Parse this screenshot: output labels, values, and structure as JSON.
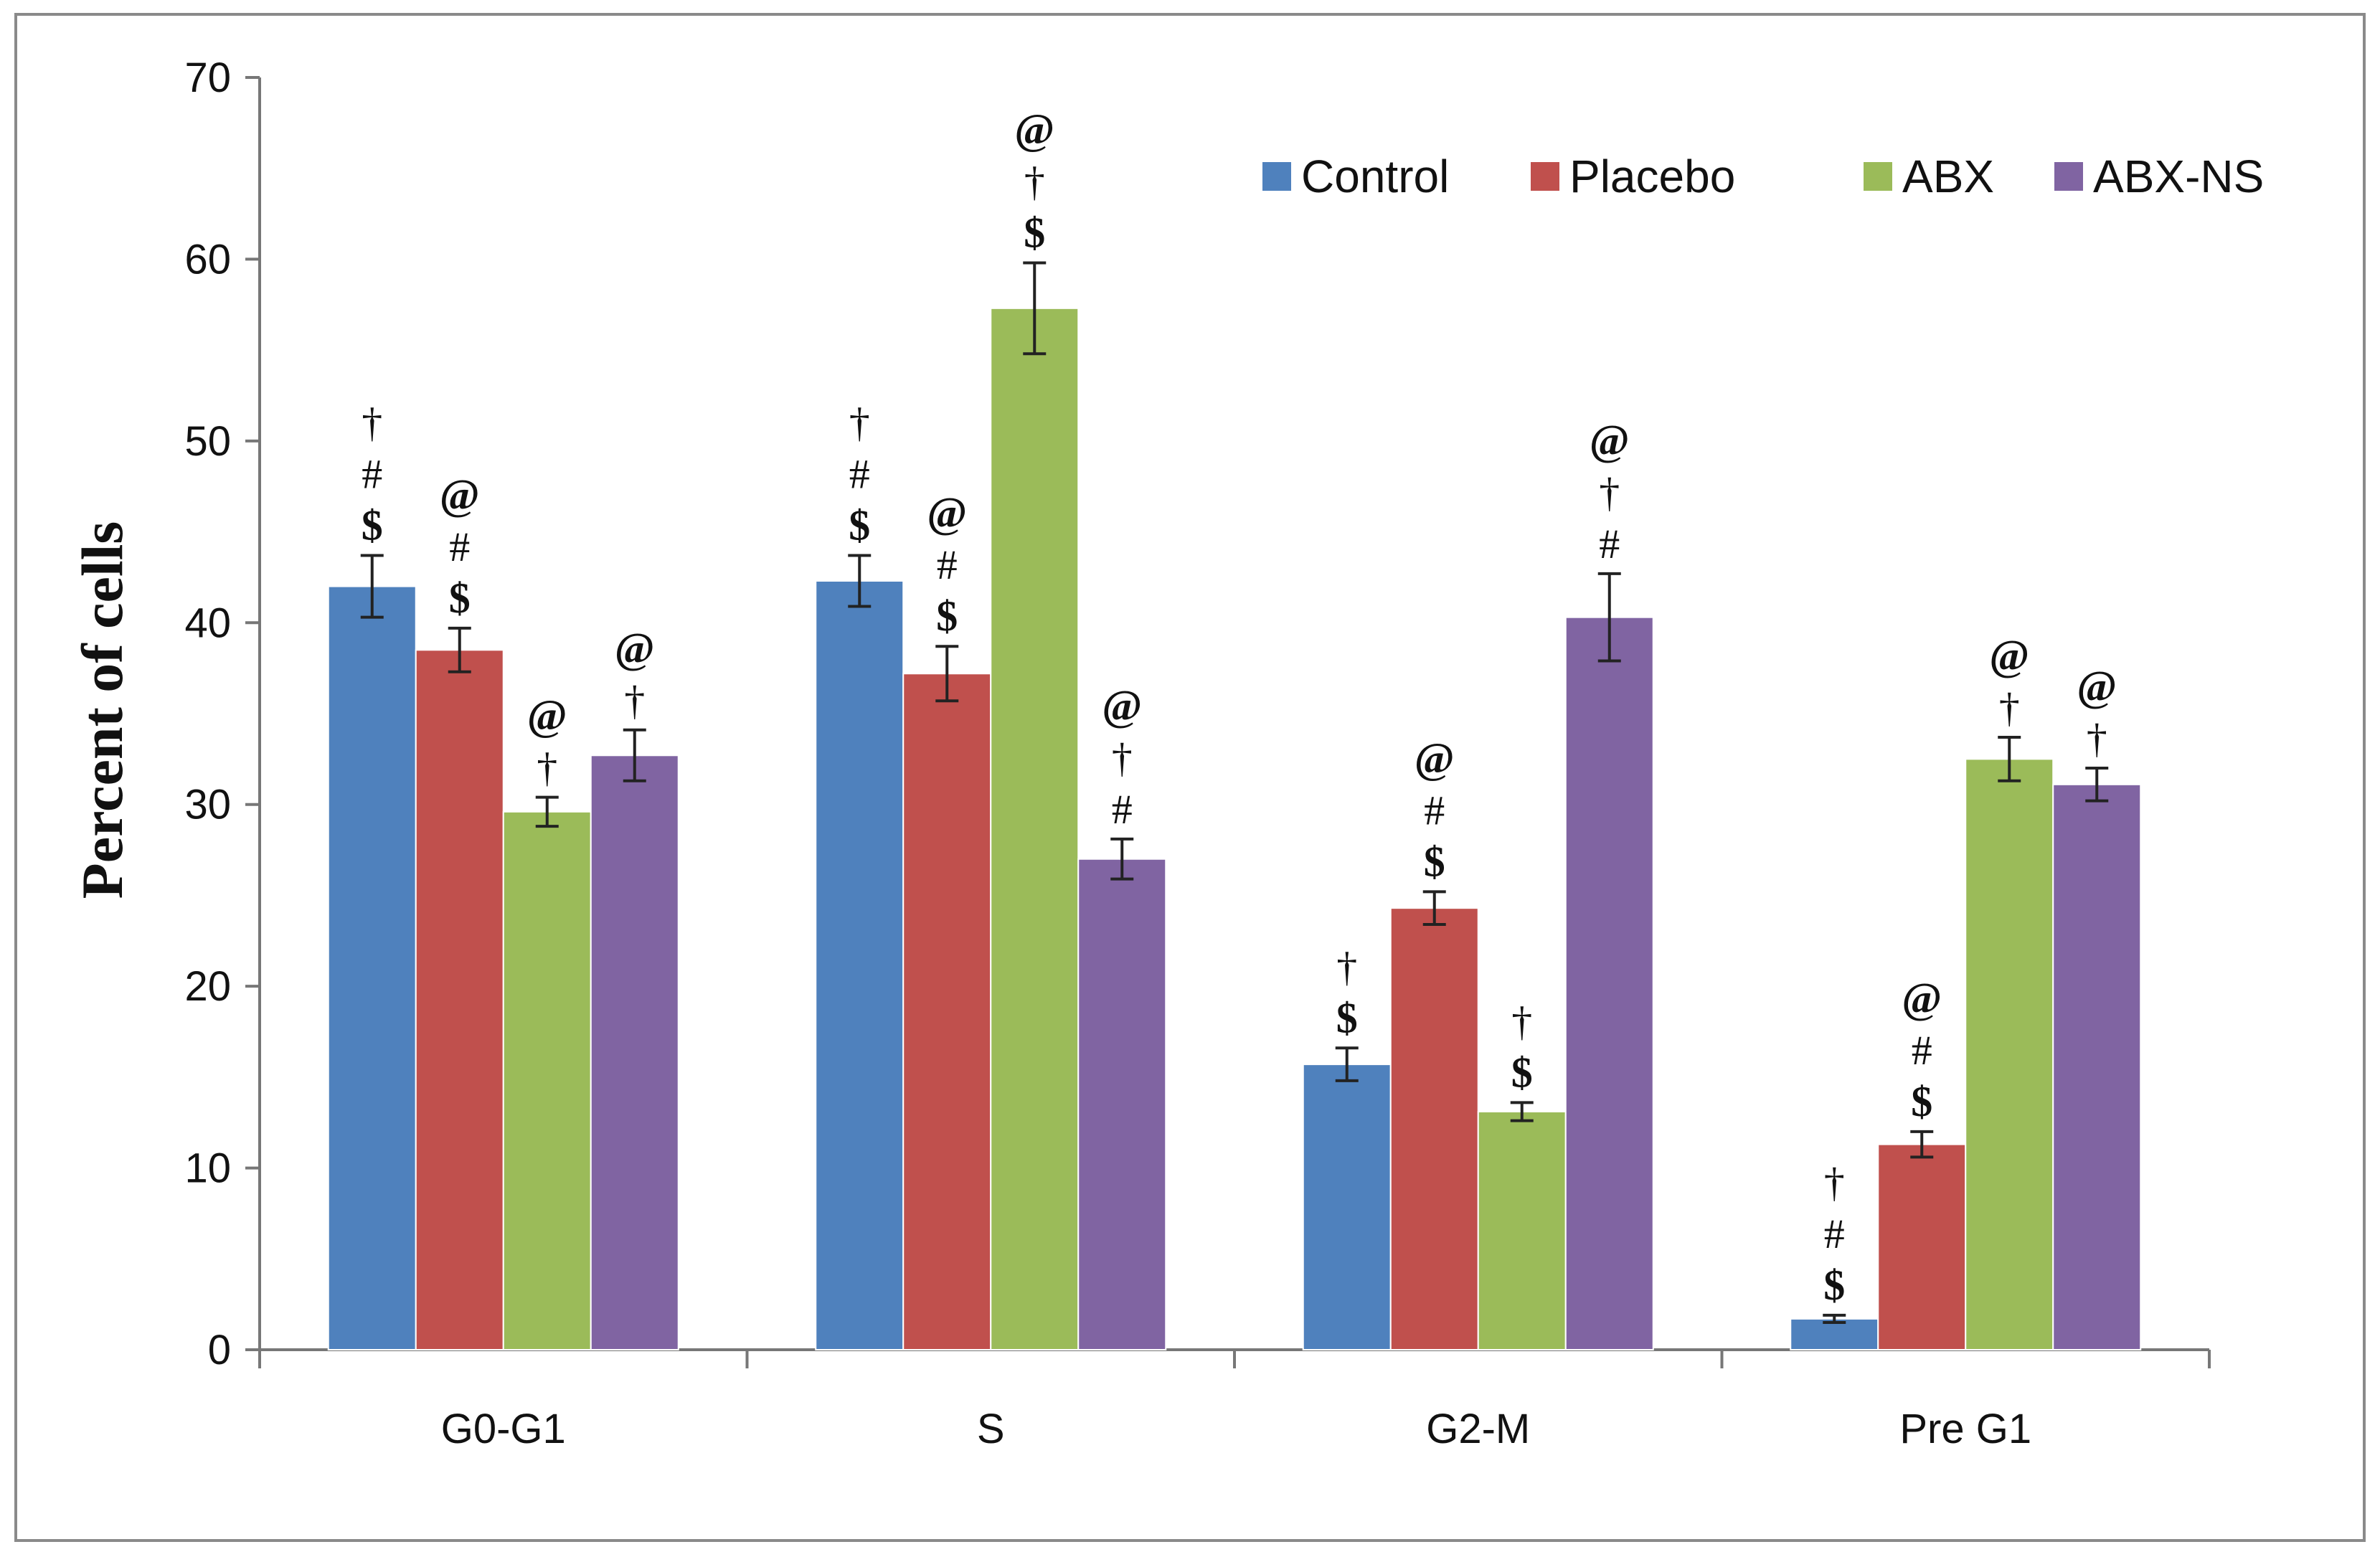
{
  "chart_data": {
    "type": "bar",
    "title": "",
    "xlabel": "",
    "ylabel": "Percent of cells",
    "ylim": [
      0,
      70
    ],
    "yticks": [
      0,
      10,
      20,
      30,
      40,
      50,
      60,
      70
    ],
    "grid": false,
    "legend_position": "top-right",
    "categories": [
      "G0-G1",
      "S",
      "G2-M",
      "Pre G1"
    ],
    "series": [
      {
        "name": "Control",
        "color": "#4F81BD",
        "values": [
          42.0,
          42.3,
          15.7,
          1.7
        ],
        "errors": [
          1.7,
          1.4,
          0.9,
          0.2
        ],
        "annotations": [
          [
            "$",
            "#",
            "†"
          ],
          [
            "$",
            "#",
            "†"
          ],
          [
            "$",
            "†"
          ],
          [
            "$",
            "#",
            "†"
          ]
        ]
      },
      {
        "name": "Placebo",
        "color": "#C0504D",
        "values": [
          38.5,
          37.2,
          24.3,
          11.3
        ],
        "errors": [
          1.2,
          1.5,
          0.9,
          0.7
        ],
        "annotations": [
          [
            "$",
            "#",
            "@"
          ],
          [
            "$",
            "#",
            "@"
          ],
          [
            "$",
            "#",
            "@"
          ],
          [
            "$",
            "#",
            "@"
          ]
        ]
      },
      {
        "name": "ABX",
        "color": "#9BBB59",
        "values": [
          29.6,
          57.3,
          13.1,
          32.5
        ],
        "errors": [
          0.8,
          2.5,
          0.5,
          1.2
        ],
        "annotations": [
          [
            "†",
            "@"
          ],
          [
            "$",
            "†",
            "@"
          ],
          [
            "$",
            "†"
          ],
          [
            "†",
            "@"
          ]
        ]
      },
      {
        "name": "ABX-NS",
        "color": "#8064A2",
        "values": [
          32.7,
          27.0,
          40.3,
          31.1
        ],
        "errors": [
          1.4,
          1.1,
          2.4,
          0.9
        ],
        "annotations": [
          [
            "†",
            "@"
          ],
          [
            "#",
            "†",
            "@"
          ],
          [
            "#",
            "†",
            "@"
          ],
          [
            "†",
            "@"
          ]
        ]
      }
    ]
  }
}
